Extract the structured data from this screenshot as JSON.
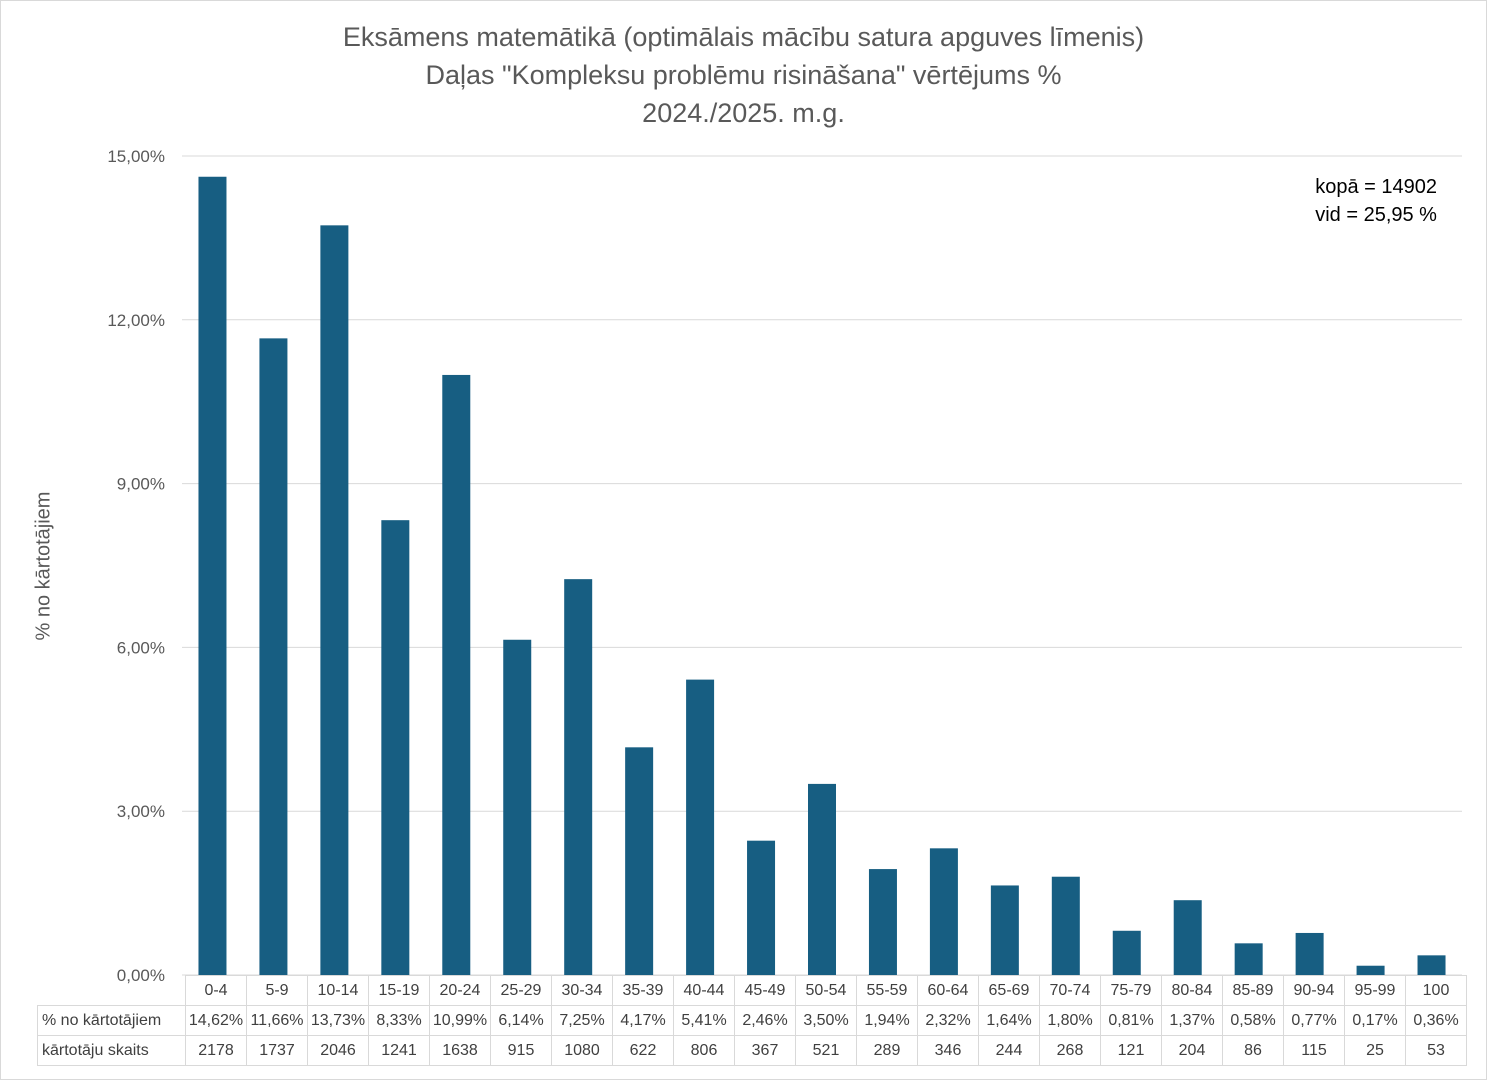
{
  "chart_data": {
    "type": "bar",
    "title": [
      "Eksāmens matemātikā (optimālais mācību satura apguves līmenis)",
      "Daļas \"Kompleksu problēmu risināšana\" vērtējums %",
      "2024./2025. m.g."
    ],
    "ylabel": "% no kārtotājiem",
    "xlabel": "",
    "ylim": [
      0,
      15
    ],
    "yticks": [
      "0,00%",
      "3,00%",
      "6,00%",
      "9,00%",
      "12,00%",
      "15,00%"
    ],
    "grid": true,
    "bar_color": "#175e82",
    "categories": [
      "0-4",
      "5-9",
      "10-14",
      "15-19",
      "20-24",
      "25-29",
      "30-34",
      "35-39",
      "40-44",
      "45-49",
      "50-54",
      "55-59",
      "60-64",
      "65-69",
      "70-74",
      "75-79",
      "80-84",
      "85-89",
      "90-94",
      "95-99",
      "100"
    ],
    "values": [
      14.62,
      11.66,
      13.73,
      8.33,
      10.99,
      6.14,
      7.25,
      4.17,
      5.41,
      2.46,
      3.5,
      1.94,
      2.32,
      1.64,
      1.8,
      0.81,
      1.37,
      0.58,
      0.77,
      0.17,
      0.36
    ],
    "table": {
      "row_labels": [
        "% no kārtotājiem",
        "kārtotāju skaits"
      ],
      "percent_labels": [
        "14,62%",
        "11,66%",
        "13,73%",
        "8,33%",
        "10,99%",
        "6,14%",
        "7,25%",
        "4,17%",
        "5,41%",
        "2,46%",
        "3,50%",
        "1,94%",
        "2,32%",
        "1,64%",
        "1,80%",
        "0,81%",
        "1,37%",
        "0,58%",
        "0,77%",
        "0,17%",
        "0,36%"
      ],
      "counts": [
        "2178",
        "1737",
        "2046",
        "1241",
        "1638",
        "915",
        "1080",
        "622",
        "806",
        "367",
        "521",
        "289",
        "346",
        "244",
        "268",
        "121",
        "204",
        "86",
        "115",
        "25",
        "53"
      ]
    },
    "annotation": [
      "kopā = 14902",
      "vid = 25,95 %"
    ]
  }
}
